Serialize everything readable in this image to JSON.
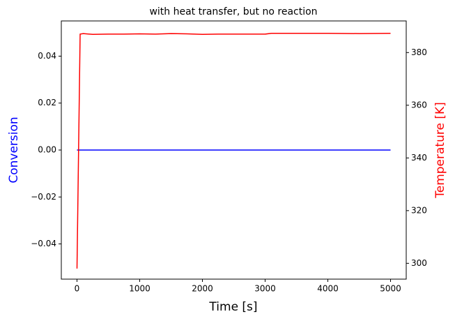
{
  "chart_data": {
    "type": "line",
    "title": "with heat transfer, but no reaction",
    "xlabel": "Time [s]",
    "ylabel": "Conversion",
    "y2label": "Temperature [K]",
    "x": [
      0,
      50,
      100,
      250,
      500,
      750,
      1000,
      1250,
      1500,
      1750,
      2000,
      2250,
      2500,
      2750,
      3000,
      3100,
      3500,
      4000,
      4500,
      5000
    ],
    "series": [
      {
        "name": "Conversion",
        "color": "#0000ff",
        "values": [
          0,
          0,
          0,
          0,
          0,
          0,
          0,
          0,
          0,
          0,
          0,
          0,
          0,
          0,
          0,
          0,
          0,
          0,
          0,
          0
        ]
      },
      {
        "name": "Temperature",
        "color": "#ff0000",
        "axis": "y2",
        "values": [
          298,
          387,
          387.2,
          386.9,
          387,
          387,
          387.1,
          387,
          387.2,
          387.1,
          386.9,
          387,
          387,
          387,
          387,
          387.3,
          387.3,
          387.3,
          387.2,
          387.3
        ]
      }
    ],
    "xlim": [
      -250,
      5250
    ],
    "xticks": [
      0,
      1000,
      2000,
      3000,
      4000,
      5000
    ],
    "ylim": [
      -0.055,
      0.055
    ],
    "yticks": [
      {
        "value": -0.04,
        "label": "−0.04"
      },
      {
        "value": -0.02,
        "label": "−0.02"
      },
      {
        "value": 0,
        "label": "0.00"
      },
      {
        "value": 0.02,
        "label": "0.02"
      },
      {
        "value": 0.04,
        "label": "0.04"
      }
    ],
    "y2lim": [
      294,
      392
    ],
    "y2ticks": [
      300,
      320,
      340,
      360,
      380
    ]
  }
}
